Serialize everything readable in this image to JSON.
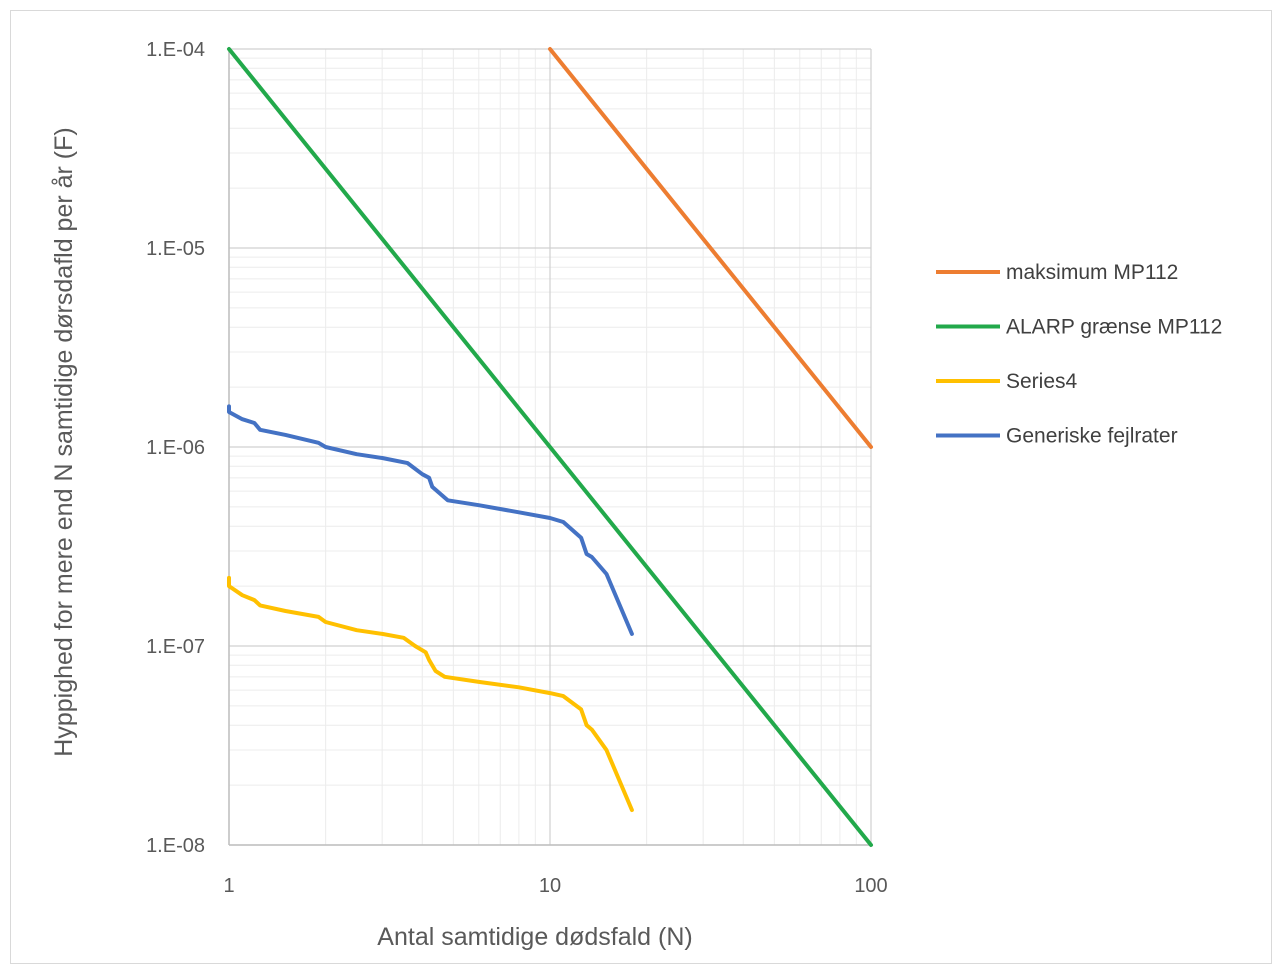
{
  "chart_data": {
    "type": "line",
    "title": "",
    "xlabel": "Antal samtidige dødsfald (N)",
    "ylabel": "Hyppighed for mere end N samtidige dørsdafld per år (F)",
    "x_scale": "log",
    "y_scale": "log",
    "xlim": [
      1,
      100
    ],
    "ylim": [
      1e-08,
      0.0001
    ],
    "x_ticks": [
      {
        "value": 1,
        "label": "1"
      },
      {
        "value": 10,
        "label": "10"
      },
      {
        "value": 100,
        "label": "100"
      }
    ],
    "y_ticks": [
      {
        "value": 0.0001,
        "label": "1.E-04"
      },
      {
        "value": 1e-05,
        "label": "1.E-05"
      },
      {
        "value": 1e-06,
        "label": "1.E-06"
      },
      {
        "value": 1e-07,
        "label": "1.E-07"
      },
      {
        "value": 1e-08,
        "label": "1.E-08"
      }
    ],
    "grid": true,
    "legend_position": "right",
    "series": [
      {
        "name": "maksimum MP112",
        "color": "#ED7D31",
        "points": [
          [
            10,
            0.0001
          ],
          [
            100,
            1e-06
          ]
        ]
      },
      {
        "name": "ALARP grænse MP112",
        "color": "#22A94B",
        "points": [
          [
            1,
            0.0001
          ],
          [
            100,
            1e-08
          ]
        ]
      },
      {
        "name": "Series4",
        "color": "#FFC000",
        "points": [
          [
            1.0,
            2.2e-07
          ],
          [
            1.0,
            2e-07
          ],
          [
            1.1,
            1.8e-07
          ],
          [
            1.2,
            1.7e-07
          ],
          [
            1.25,
            1.6e-07
          ],
          [
            1.5,
            1.5e-07
          ],
          [
            1.9,
            1.4e-07
          ],
          [
            2.0,
            1.32e-07
          ],
          [
            2.5,
            1.2e-07
          ],
          [
            3.0,
            1.15e-07
          ],
          [
            3.5,
            1.1e-07
          ],
          [
            3.8,
            1e-07
          ],
          [
            4.1,
            9.3e-08
          ],
          [
            4.2,
            8.5e-08
          ],
          [
            4.4,
            7.5e-08
          ],
          [
            4.7,
            7e-08
          ],
          [
            6.0,
            6.6e-08
          ],
          [
            8.0,
            6.2e-08
          ],
          [
            10.0,
            5.8e-08
          ],
          [
            11.0,
            5.6e-08
          ],
          [
            12.5,
            4.8e-08
          ],
          [
            13.0,
            4e-08
          ],
          [
            13.5,
            3.8e-08
          ],
          [
            15.0,
            3e-08
          ],
          [
            18.0,
            1.5e-08
          ]
        ]
      },
      {
        "name": "Generiske fejlrater",
        "color": "#4472C4",
        "points": [
          [
            1.0,
            1.6e-06
          ],
          [
            1.0,
            1.5e-06
          ],
          [
            1.1,
            1.38e-06
          ],
          [
            1.2,
            1.32e-06
          ],
          [
            1.25,
            1.22e-06
          ],
          [
            1.5,
            1.15e-06
          ],
          [
            1.9,
            1.05e-06
          ],
          [
            2.0,
            1e-06
          ],
          [
            2.5,
            9.2e-07
          ],
          [
            3.0,
            8.8e-07
          ],
          [
            3.6,
            8.3e-07
          ],
          [
            4.0,
            7.3e-07
          ],
          [
            4.2,
            7e-07
          ],
          [
            4.3,
            6.3e-07
          ],
          [
            4.8,
            5.4e-07
          ],
          [
            6.0,
            5.1e-07
          ],
          [
            8.0,
            4.7e-07
          ],
          [
            10.0,
            4.4e-07
          ],
          [
            11.0,
            4.2e-07
          ],
          [
            12.5,
            3.5e-07
          ],
          [
            13.0,
            2.9e-07
          ],
          [
            13.5,
            2.8e-07
          ],
          [
            15.0,
            2.3e-07
          ],
          [
            18.0,
            1.15e-07
          ]
        ]
      }
    ]
  }
}
